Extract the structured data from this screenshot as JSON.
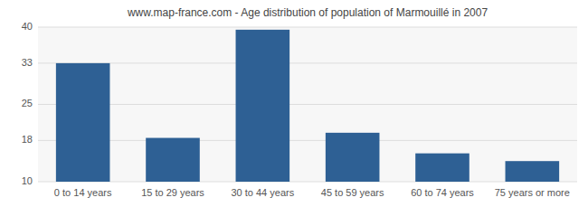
{
  "chart_data": {
    "type": "bar",
    "title": "www.map-france.com - Age distribution of population of Marmouillé in 2007",
    "categories": [
      "0 to 14 years",
      "15 to 29 years",
      "30 to 44 years",
      "45 to 59 years",
      "60 to 74 years",
      "75 years or more"
    ],
    "values": [
      33.0,
      18.5,
      39.5,
      19.5,
      15.5,
      14.0
    ],
    "color": "#2e6094",
    "ylim": [
      10,
      40
    ],
    "yticks": [
      10,
      18,
      25,
      33,
      40
    ],
    "grid": true
  }
}
